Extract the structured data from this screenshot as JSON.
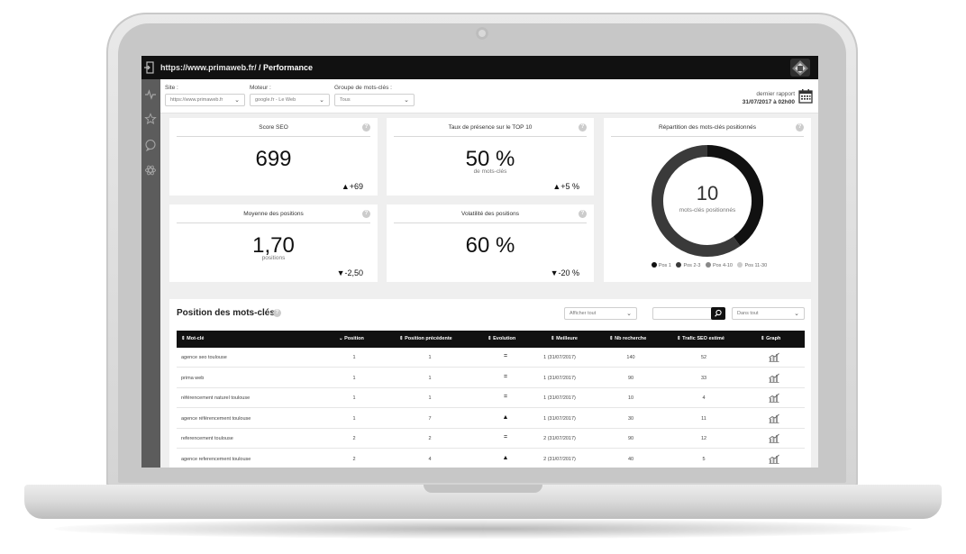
{
  "topbar": {
    "url": "https://www.primaweb.fr/",
    "crumb": "/ Performance"
  },
  "filters": {
    "site_label": "Site :",
    "site_value": "https://www.primaweb.fr",
    "engine_label": "Moteur :",
    "engine_value": "google.fr - Le Web",
    "group_label": "Groupe de mots-clés :",
    "group_value": "Tous",
    "report_label": "dernier rapport",
    "report_date": "31/07/2017 à 02h00"
  },
  "cards": {
    "score_seo": {
      "title": "Score SEO",
      "value": "699",
      "delta": "▲+69"
    },
    "top10": {
      "title": "Taux de présence sur le TOP 10",
      "value": "50 %",
      "sub": "de mots-clés",
      "delta": "▲+5 %"
    },
    "moyenne": {
      "title": "Moyenne des positions",
      "value": "1,70",
      "sub": "positions",
      "delta": "▼-2,50"
    },
    "volatilite": {
      "title": "Volatilité des positions",
      "value": "60 %",
      "delta": "▼-20 %"
    },
    "repartition": {
      "title": "Répartition des mots-clés positionnés",
      "value": "10",
      "sub": "mots-clés positionnés",
      "legend": [
        "Pos 1",
        "Pos 2-3",
        "Pos 4-10",
        "Pos 11-30"
      ]
    }
  },
  "colors": {
    "pos1": "#111111",
    "pos23": "#3a3a3a",
    "pos410": "#888888",
    "pos1130": "#cccccc"
  },
  "chart_data": {
    "type": "pie",
    "categories": [
      "Pos 1",
      "Pos 2-3",
      "Pos 4-10",
      "Pos 11-30"
    ],
    "values": [
      4,
      6,
      0,
      0
    ],
    "center_label": "10"
  },
  "panel": {
    "title": "Position des mots-clés",
    "arrow": "›",
    "filter_value": "Afficher tout",
    "scope_value": "Dans tout",
    "columns": [
      "Mot-clé",
      "Position",
      "Position précédente",
      "Evolution",
      "Meilleure",
      "Nb recherche",
      "Trafic SEO estimé",
      "Graph"
    ],
    "rows": [
      {
        "keyword": "agence seo toulouse",
        "position": "1",
        "previous": "1",
        "evolution": "=",
        "best": "1 (31/07/2017)",
        "searches": "140",
        "traffic": "52"
      },
      {
        "keyword": "prima web",
        "position": "1",
        "previous": "1",
        "evolution": "=",
        "best": "1 (31/07/2017)",
        "searches": "90",
        "traffic": "33"
      },
      {
        "keyword": "référencement naturel toulouse",
        "position": "1",
        "previous": "1",
        "evolution": "=",
        "best": "1 (31/07/2017)",
        "searches": "10",
        "traffic": "4"
      },
      {
        "keyword": "agence référencement toulouse",
        "position": "1",
        "previous": "7",
        "evolution": "▲",
        "best": "1 (31/07/2017)",
        "searches": "30",
        "traffic": "11"
      },
      {
        "keyword": "referencement toulouse",
        "position": "2",
        "previous": "2",
        "evolution": "=",
        "best": "2 (31/07/2017)",
        "searches": "90",
        "traffic": "12"
      },
      {
        "keyword": "agence referencement toulouse",
        "position": "2",
        "previous": "4",
        "evolution": "▲",
        "best": "2 (31/07/2017)",
        "searches": "40",
        "traffic": "5"
      }
    ]
  }
}
